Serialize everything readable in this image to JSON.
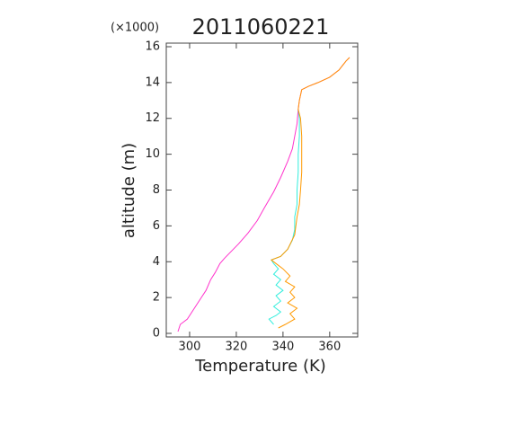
{
  "chart_data": {
    "type": "line",
    "title": "2011060221",
    "y_multiplier": "(×1000)",
    "x_label": "Temperature (K)",
    "y_label": "altitude (m)",
    "xlim": [
      290,
      372
    ],
    "ylim": [
      -0.2,
      16.2
    ],
    "xticks": [
      300,
      320,
      340,
      360
    ],
    "yticks": [
      0,
      2,
      4,
      6,
      8,
      10,
      12,
      14,
      16
    ],
    "series": [
      {
        "color": "#ff33cc",
        "x": [
          295,
          296,
          299,
          303,
          305,
          307,
          309,
          311,
          313,
          315,
          318,
          321,
          325,
          329,
          332,
          336,
          339,
          342,
          344,
          345,
          346,
          346.5,
          347,
          348,
          351,
          355,
          360,
          364,
          367,
          368.5
        ],
        "values": [
          0.1,
          0.5,
          0.8,
          1.6,
          2.0,
          2.4,
          3.0,
          3.4,
          3.9,
          4.2,
          4.6,
          5.0,
          5.6,
          6.3,
          7.0,
          7.9,
          8.7,
          9.6,
          10.3,
          11.0,
          11.7,
          12.5,
          13.0,
          13.6,
          13.8,
          14.0,
          14.3,
          14.7,
          15.2,
          15.4
        ]
      },
      {
        "color": "#33eedd",
        "x": [
          336,
          334,
          337,
          339,
          336,
          339,
          337,
          340,
          337,
          339,
          336,
          338,
          336,
          335,
          339,
          342,
          344,
          345,
          345,
          346,
          346,
          346.5,
          346.5,
          347,
          347,
          346.5
        ],
        "values": [
          0.5,
          0.8,
          1.0,
          1.2,
          1.5,
          1.8,
          2.1,
          2.4,
          2.7,
          3.0,
          3.3,
          3.6,
          3.9,
          4.1,
          4.3,
          4.7,
          5.2,
          5.8,
          6.5,
          7.2,
          8,
          9,
          10,
          11,
          12,
          12.5
        ]
      },
      {
        "color": "#ff9900",
        "x": [
          338,
          341,
          345,
          343,
          346,
          342,
          345,
          343,
          345,
          341,
          343,
          340,
          337,
          335,
          339,
          342,
          345,
          346,
          347,
          347.5,
          348,
          348,
          348,
          347.5,
          346.5,
          347,
          348,
          351,
          355,
          360,
          364,
          367,
          368.5
        ],
        "values": [
          0.3,
          0.5,
          0.8,
          1.1,
          1.4,
          1.7,
          2.0,
          2.3,
          2.6,
          2.9,
          3.2,
          3.6,
          3.9,
          4.1,
          4.3,
          4.7,
          5.5,
          6.5,
          7.2,
          8,
          9,
          10,
          11,
          12,
          12.5,
          13.0,
          13.6,
          13.8,
          14.0,
          14.3,
          14.7,
          15.2,
          15.4
        ]
      }
    ]
  }
}
